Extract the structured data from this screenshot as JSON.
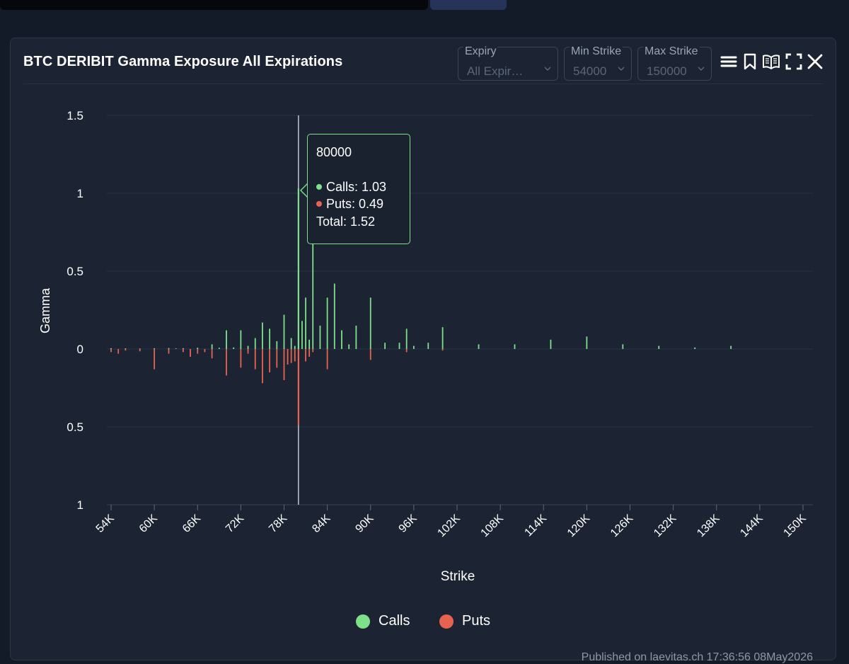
{
  "panel": {
    "title": "BTC DERIBIT Gamma Exposure All Expirations",
    "published": "Published on laevitas.ch  17:36:56 08May2026"
  },
  "controls": {
    "expiry": {
      "label": "Expiry",
      "value": "All Expir…"
    },
    "min_strike": {
      "label": "Min Strike",
      "value": "54000"
    },
    "max_strike": {
      "label": "Max Strike",
      "value": "150000"
    }
  },
  "icons": [
    "menu-icon",
    "bookmark-icon",
    "book-icon",
    "fullscreen-icon",
    "close-icon"
  ],
  "colors": {
    "calls": "#7fe08a",
    "puts": "#e8634f",
    "crosshair": "#e9edf2",
    "grid": "#26334a"
  },
  "tooltip": {
    "strike": "80000",
    "calls": "Calls: 1.03",
    "puts": "Puts: 0.49",
    "total": "Total: 1.52"
  },
  "legend": {
    "calls": "Calls",
    "puts": "Puts"
  },
  "chart_data": {
    "type": "bar",
    "title": "BTC DERIBIT Gamma Exposure All Expirations",
    "xlabel": "Strike",
    "ylabel": "Gamma",
    "xlim": [
      54000,
      150000
    ],
    "ylim": [
      -1,
      1.5
    ],
    "x_ticks": [
      "54K",
      "60K",
      "66K",
      "72K",
      "78K",
      "84K",
      "90K",
      "96K",
      "102K",
      "108K",
      "114K",
      "120K",
      "126K",
      "132K",
      "138K",
      "144K",
      "150K"
    ],
    "y_ticks": [
      {
        "value": 1.5,
        "label": "1.5"
      },
      {
        "value": 1,
        "label": "1"
      },
      {
        "value": 0.5,
        "label": "0.5"
      },
      {
        "value": 0,
        "label": "0"
      },
      {
        "value": -0.5,
        "label": "0.5"
      },
      {
        "value": -1,
        "label": "1"
      }
    ],
    "grid": true,
    "legend_position": "bottom",
    "hover_x": 80000,
    "series": [
      {
        "name": "Calls",
        "points": [
          [
            54000,
            0.005
          ],
          [
            56000,
            0.004
          ],
          [
            58000,
            0.003
          ],
          [
            60000,
            0.005
          ],
          [
            62000,
            0.006
          ],
          [
            63000,
            0.004
          ],
          [
            64000,
            0.005
          ],
          [
            66000,
            0.008
          ],
          [
            68000,
            0.03
          ],
          [
            69000,
            0.008
          ],
          [
            70000,
            0.12
          ],
          [
            71000,
            0.01
          ],
          [
            72000,
            0.12
          ],
          [
            73000,
            0.02
          ],
          [
            74000,
            0.07
          ],
          [
            75000,
            0.17
          ],
          [
            76000,
            0.13
          ],
          [
            77000,
            0.05
          ],
          [
            78000,
            0.22
          ],
          [
            79000,
            0.07
          ],
          [
            79500,
            0.02
          ],
          [
            80000,
            1.03
          ],
          [
            80500,
            0.18
          ],
          [
            81000,
            0.33
          ],
          [
            81500,
            0.06
          ],
          [
            82000,
            0.81
          ],
          [
            83000,
            0.15
          ],
          [
            84000,
            0.33
          ],
          [
            85000,
            0.42
          ],
          [
            86000,
            0.12
          ],
          [
            87000,
            0.03
          ],
          [
            88000,
            0.15
          ],
          [
            90000,
            0.33
          ],
          [
            92000,
            0.04
          ],
          [
            94000,
            0.04
          ],
          [
            95000,
            0.13
          ],
          [
            96000,
            0.02
          ],
          [
            98000,
            0.04
          ],
          [
            100000,
            0.14
          ],
          [
            105000,
            0.03
          ],
          [
            110000,
            0.03
          ],
          [
            115000,
            0.06
          ],
          [
            120000,
            0.08
          ],
          [
            125000,
            0.03
          ],
          [
            130000,
            0.02
          ],
          [
            135000,
            0.01
          ],
          [
            140000,
            0.02
          ]
        ]
      },
      {
        "name": "Puts",
        "points": [
          [
            54000,
            -0.02
          ],
          [
            55000,
            -0.03
          ],
          [
            56000,
            -0.01
          ],
          [
            58000,
            -0.015
          ],
          [
            60000,
            -0.13
          ],
          [
            62000,
            -0.03
          ],
          [
            64000,
            -0.02
          ],
          [
            65000,
            -0.05
          ],
          [
            66000,
            -0.03
          ],
          [
            67000,
            -0.02
          ],
          [
            68000,
            -0.06
          ],
          [
            70000,
            -0.17
          ],
          [
            72000,
            -0.12
          ],
          [
            73000,
            -0.03
          ],
          [
            74000,
            -0.13
          ],
          [
            75000,
            -0.22
          ],
          [
            76000,
            -0.15
          ],
          [
            77000,
            -0.12
          ],
          [
            78000,
            -0.2
          ],
          [
            78500,
            -0.1
          ],
          [
            79000,
            -0.09
          ],
          [
            79500,
            -0.08
          ],
          [
            80000,
            -0.49
          ],
          [
            81000,
            -0.08
          ],
          [
            81500,
            -0.05
          ],
          [
            82000,
            -0.02
          ],
          [
            84000,
            -0.13
          ],
          [
            90000,
            -0.07
          ],
          [
            95000,
            -0.02
          ],
          [
            100000,
            -0.01
          ]
        ]
      }
    ]
  }
}
